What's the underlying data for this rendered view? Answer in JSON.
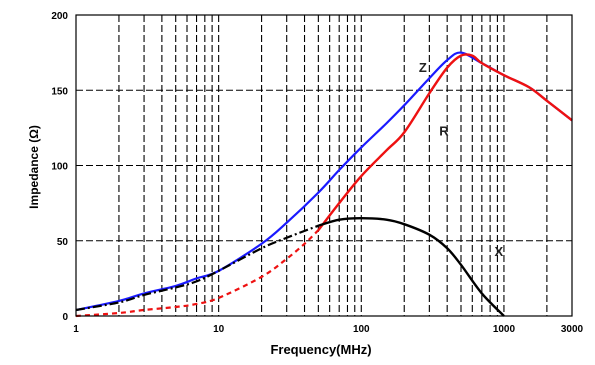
{
  "chart_data": {
    "type": "line",
    "xscale": "log",
    "xlim": [
      1,
      3000
    ],
    "ylim": [
      0,
      200
    ],
    "xlabel": "Frequency(MHz)",
    "ylabel": "Impedance (Ω)",
    "xticks": [
      1,
      10,
      100,
      1000,
      3000
    ],
    "yticks": [
      0,
      50,
      100,
      150,
      200
    ],
    "grid": {
      "x": "dashed at 1-2-3...9 per decade",
      "y": "dashed at every 50"
    },
    "series": [
      {
        "name": "Z",
        "color": "#1a1aff",
        "style": "solid",
        "x": [
          1,
          2,
          3,
          5,
          7,
          10,
          20,
          30,
          50,
          70,
          100,
          150,
          200,
          300,
          400,
          500,
          700,
          1000,
          1500,
          2000,
          3000
        ],
        "y": [
          4,
          10,
          15,
          20,
          25,
          30,
          48,
          62,
          82,
          97,
          112,
          128,
          140,
          158,
          170,
          175,
          168,
          160,
          152,
          143,
          130
        ]
      },
      {
        "name": "R",
        "color": "#ee1111",
        "style": "dashed-then-solid",
        "dashed_until_x": 50,
        "x": [
          1,
          2,
          3,
          5,
          7,
          10,
          20,
          30,
          40,
          50,
          70,
          100,
          150,
          200,
          300,
          400,
          500,
          600,
          700,
          1000,
          1500,
          2000,
          3000
        ],
        "y": [
          0,
          2,
          4,
          6,
          8,
          12,
          26,
          38,
          48,
          57,
          75,
          93,
          110,
          122,
          148,
          165,
          173,
          173,
          168,
          160,
          152,
          143,
          130
        ]
      },
      {
        "name": "X",
        "color": "#000000",
        "style": "dashdot-then-solid",
        "dashed_until_x": 50,
        "x": [
          1,
          2,
          3,
          5,
          7,
          10,
          20,
          30,
          50,
          70,
          100,
          150,
          200,
          300,
          400,
          500,
          700,
          1000
        ],
        "y": [
          4,
          9,
          14,
          19,
          23,
          30,
          45,
          52,
          60,
          64,
          65,
          64,
          61,
          54,
          45,
          34,
          15,
          0
        ]
      }
    ],
    "annotations": [
      {
        "text": "Z",
        "x": 270,
        "y": 162
      },
      {
        "text": "R",
        "x": 380,
        "y": 120
      },
      {
        "text": "X",
        "x": 920,
        "y": 40
      }
    ]
  }
}
